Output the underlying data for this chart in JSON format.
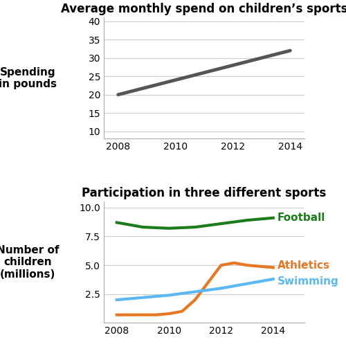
{
  "chart1": {
    "title": "Average monthly spend on children’s sports",
    "ylabel": "Spending\nin pounds",
    "x": [
      2008,
      2014
    ],
    "y": [
      20,
      32
    ],
    "line_color": "#555555",
    "line_width": 3.5,
    "ylim": [
      8,
      41
    ],
    "yticks": [
      10,
      15,
      20,
      25,
      30,
      35,
      40
    ],
    "xlim": [
      2007.5,
      2014.5
    ],
    "xticks": [
      2008,
      2010,
      2012,
      2014
    ]
  },
  "chart2": {
    "title": "Participation in three different sports",
    "ylabel": "Number of\nchildren\n(millions)",
    "ylim": [
      0,
      10.5
    ],
    "yticks": [
      2.5,
      5,
      7.5,
      10
    ],
    "xlim": [
      2007.5,
      2015.2
    ],
    "xticks": [
      2008,
      2010,
      2012,
      2014
    ],
    "football": {
      "x": [
        2008,
        2009,
        2010,
        2011,
        2012,
        2013,
        2014
      ],
      "y": [
        8.7,
        8.3,
        8.2,
        8.3,
        8.6,
        8.9,
        9.1
      ],
      "color": "#1a7d1a",
      "label": "Football",
      "line_width": 3.0
    },
    "athletics": {
      "x": [
        2008,
        2009,
        2009.5,
        2010,
        2010.5,
        2011,
        2011.5,
        2012,
        2012.5,
        2013,
        2014
      ],
      "y": [
        0.7,
        0.7,
        0.7,
        0.8,
        1.0,
        2.0,
        3.5,
        5.0,
        5.2,
        5.0,
        4.8
      ],
      "color": "#e87722",
      "label": "Athletics",
      "line_width": 3.0
    },
    "swimming": {
      "x": [
        2008,
        2009,
        2010,
        2011,
        2012,
        2013,
        2014
      ],
      "y": [
        2.0,
        2.2,
        2.4,
        2.7,
        3.0,
        3.4,
        3.8
      ],
      "color": "#5bb8f5",
      "label": "Swimming",
      "line_width": 3.0
    }
  },
  "bg_color": "#ffffff",
  "title_fontsize": 12,
  "ylabel_fontsize": 11,
  "tick_fontsize": 10,
  "label_fontsize": 11
}
